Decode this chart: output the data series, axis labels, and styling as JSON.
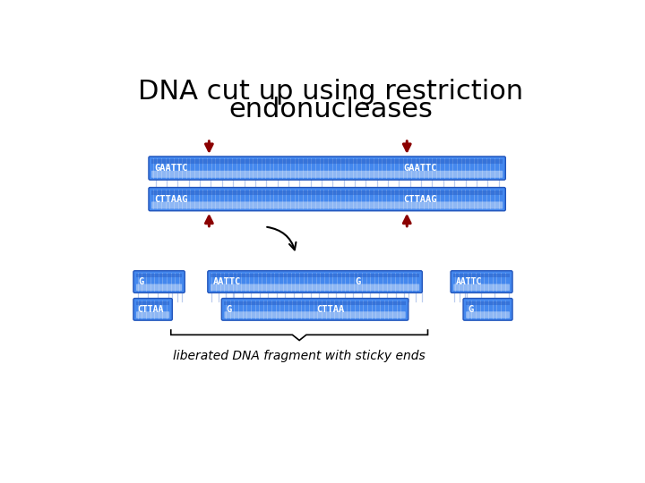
{
  "title_line1": "DNA cut up using restriction",
  "title_line2": "endonucleases",
  "title_fontsize": 22,
  "background_color": "#ffffff",
  "tube_color_top": "#7ab4f5",
  "tube_color_mid": "#4488ee",
  "tube_color_dark": "#2255bb",
  "tube_color_light": "#aaccff",
  "tube_highlight": "#cce0ff",
  "rungs_color": "#ccddff",
  "text_color": "#ffffff",
  "arrow_color": "#8B0000",
  "label_color": "#000000",
  "bottom_annotation": "liberated DNA fragment with sticky ends",
  "ann_fontsize": 10
}
